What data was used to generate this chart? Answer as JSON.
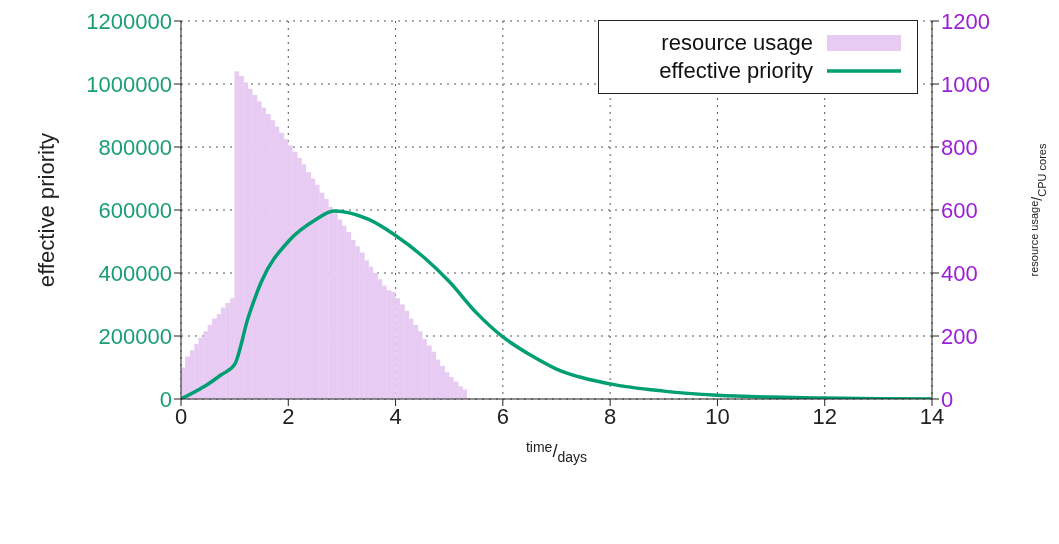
{
  "chart_data": {
    "type": "histogram",
    "xlabel": "$^{time}$/$_{days}$",
    "ylabel": "effective priority",
    "y2label": "$^{resource usage}$/$_{CPU cores}$",
    "xlim": [
      0,
      14
    ],
    "xticks": [
      0,
      2,
      4,
      6,
      8,
      10,
      12,
      14
    ],
    "ylim": [
      0,
      1200000
    ],
    "yticks": [
      0,
      200000,
      400000,
      600000,
      800000,
      1000000,
      1200000
    ],
    "y2lim": [
      0,
      1200
    ],
    "y2ticks": [
      0,
      200,
      400,
      600,
      800,
      1000,
      1200
    ],
    "grid": true,
    "legend": "top right",
    "series": [
      {
        "name": "resource usage",
        "axis": "y2",
        "color": "#e8cbf3",
        "bins": [
          0,
          0.08,
          0.17,
          0.25,
          0.33,
          0.42,
          0.5,
          0.58,
          0.67,
          0.75,
          0.83,
          0.92,
          1,
          1.08,
          1.17,
          1.25,
          1.33,
          1.42,
          1.5,
          1.58,
          1.67,
          1.75,
          1.83,
          1.92,
          2,
          2.08,
          2.17,
          2.25,
          2.33,
          2.42,
          2.5,
          2.58,
          2.67,
          2.75,
          2.83,
          2.92,
          3,
          3.08,
          3.17,
          3.25,
          3.33,
          3.42,
          3.5,
          3.58,
          3.67,
          3.75,
          3.83,
          3.92,
          4,
          4.08,
          4.17,
          4.25,
          4.33,
          4.42,
          4.5,
          4.58,
          4.67,
          4.75,
          4.83,
          4.92,
          5,
          5.08,
          5.17,
          5.25,
          5.33
        ],
        "values": [
          100,
          135,
          155,
          175,
          195,
          215,
          235,
          255,
          270,
          290,
          305,
          320,
          1040,
          1025,
          1005,
          985,
          965,
          945,
          925,
          905,
          885,
          865,
          845,
          825,
          805,
          785,
          765,
          745,
          720,
          700,
          680,
          655,
          635,
          610,
          590,
          570,
          550,
          530,
          505,
          485,
          465,
          440,
          420,
          400,
          380,
          360,
          345,
          340,
          320,
          300,
          280,
          255,
          235,
          215,
          190,
          170,
          150,
          125,
          105,
          85,
          70,
          55,
          40,
          30
        ]
      },
      {
        "name": "effective priority",
        "type": "line",
        "color": "#009e73",
        "x": [
          0,
          0.25,
          0.5,
          0.75,
          1,
          1.25,
          1.5,
          2,
          2.5,
          2.85,
          3.5,
          4,
          4.5,
          5,
          5.5,
          6,
          6.5,
          7,
          8,
          9,
          10,
          11,
          12,
          13,
          14
        ],
        "values": [
          0,
          22000,
          47000,
          77000,
          110000,
          257000,
          373000,
          500000,
          568000,
          597000,
          570000,
          519000,
          454000,
          373000,
          275000,
          197000,
          141000,
          95000,
          48000,
          25000,
          12000,
          6000,
          3000,
          1000,
          0
        ]
      }
    ]
  }
}
